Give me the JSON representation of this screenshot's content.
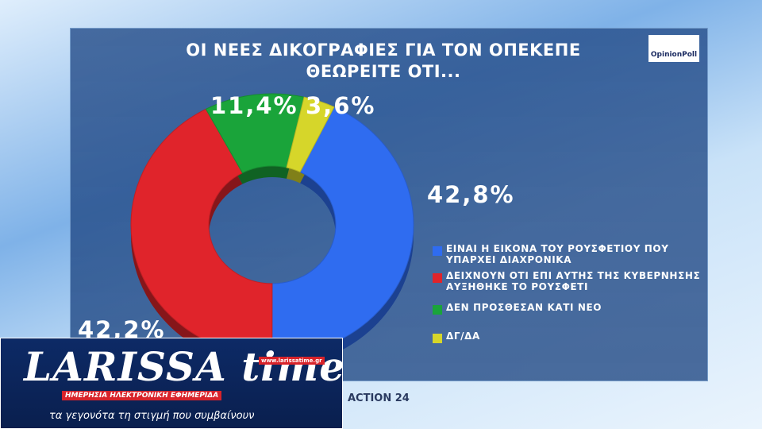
{
  "chart_data": {
    "type": "pie",
    "donut": true,
    "title": "ΟΙ ΝΕΕΣ ΔΙΚΟΓΡΑΦΙΕΣ ΓΙΑ ΤΟΝ ΟΠΕΚΕΠΕ ΘΕΩΡΕΙΤΕ ΟΤΙ...",
    "categories": [
      "ΕΙΝΑΙ Η ΕΙΚΟΝΑ ΤΟΥ ΡΟΥΣΦΕΤΙΟΥ ΠΟΥ ΥΠΑΡΧΕΙ ΔΙΑΧΡΟΝΙΚΑ",
      "ΔΕΙΧΝΟΥΝ ΟΤΙ ΕΠΙ ΑΥΤΗΣ ΤΗΣ ΚΥΒΕΡΝΗΣΗΣ ΑΥΞΗΘΗΚΕ ΤΟ ΡΟΥΣΦΕΤΙ",
      "ΔΕΝ ΠΡΟΣΘΕΣΑΝ ΚΑΤΙ ΝΕΟ",
      "ΔΓ/ΔΑ"
    ],
    "values": [
      42.8,
      42.2,
      11.4,
      3.6
    ],
    "value_labels": [
      "42,8%",
      "42,2%",
      "11,4%",
      "3,6%"
    ],
    "colors": [
      "#2f6cf0",
      "#e0242b",
      "#1aa43a",
      "#d6d62a"
    ],
    "legend": "right"
  },
  "branding": {
    "poll": "OpinionPoll",
    "channel": "ACTION 24",
    "site_name": "LARISSA time",
    "tagline": "ΗΜΕΡΗΣΙΑ ΗΛΕΚΤΡΟΝΙΚΗ ΕΦΗΜΕΡΙΔΑ",
    "url": "www.larissatime.gr",
    "slogan": "τα γεγονότα τη στιγμή που συμβαίνουν"
  }
}
